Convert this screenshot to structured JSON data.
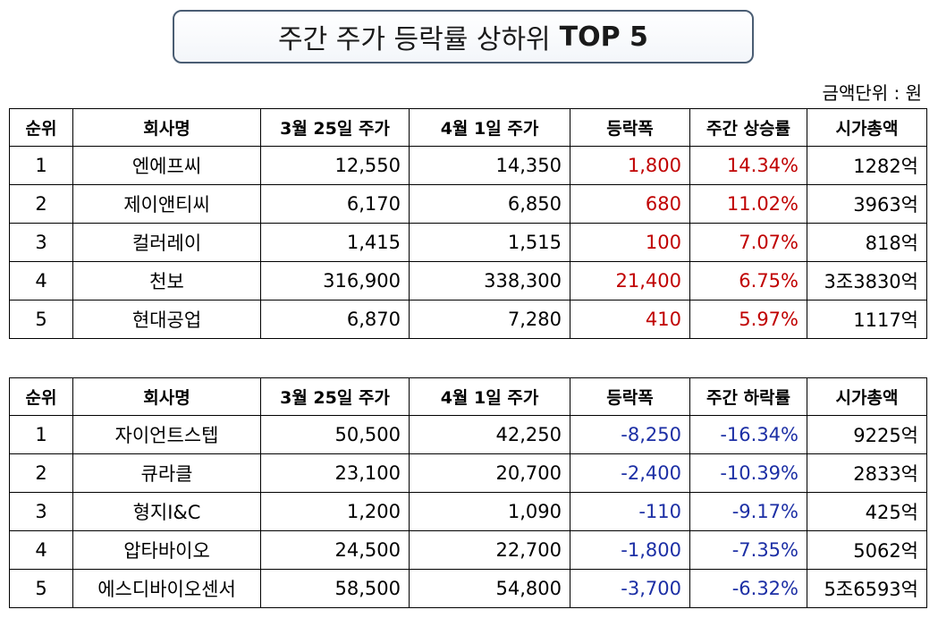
{
  "title": {
    "main": "주간 주가 등락률 상하위",
    "bold": "TOP 5"
  },
  "unit": "금액단위 : 원",
  "top_table": {
    "headers": [
      "순위",
      "회사명",
      "3월 25일 주가",
      "4월 1일 주가",
      "등락폭",
      "주간 상승률",
      "시가총액"
    ],
    "rows": [
      [
        "1",
        "엔에프씨",
        "12,550",
        "14,350",
        "1,800",
        "14.34%",
        "1282억"
      ],
      [
        "2",
        "제이앤티씨",
        "6,170",
        "6,850",
        "680",
        "11.02%",
        "3963억"
      ],
      [
        "3",
        "컬러레이",
        "1,415",
        "1,515",
        "100",
        "7.07%",
        "818억"
      ],
      [
        "4",
        "천보",
        "316,900",
        "338,300",
        "21,400",
        "6.75%",
        "3조3830억"
      ],
      [
        "5",
        "현대공업",
        "6,870",
        "7,280",
        "410",
        "5.97%",
        "1117억"
      ]
    ]
  },
  "bottom_table": {
    "headers": [
      "순위",
      "회사명",
      "3월 25일 주가",
      "4월 1일 주가",
      "등락폭",
      "주간 하락률",
      "시가총액"
    ],
    "rows": [
      [
        "1",
        "자이언트스텝",
        "50,500",
        "42,250",
        "-8,250",
        "-16.34%",
        "9225억"
      ],
      [
        "2",
        "큐라클",
        "23,100",
        "20,700",
        "-2,400",
        "-10.39%",
        "2833억"
      ],
      [
        "3",
        "형지I&C",
        "1,200",
        "1,090",
        "-110",
        "-9.17%",
        "425억"
      ],
      [
        "4",
        "압타바이오",
        "24,500",
        "22,700",
        "-1,800",
        "-7.35%",
        "5062억"
      ],
      [
        "5",
        "에스디바이오센서",
        "58,500",
        "54,800",
        "-3,700",
        "-6.32%",
        "5조6593억"
      ]
    ]
  },
  "colors": {
    "rise": "#c00000",
    "fall": "#1c2fa5",
    "title_border": "#4a5d73"
  }
}
